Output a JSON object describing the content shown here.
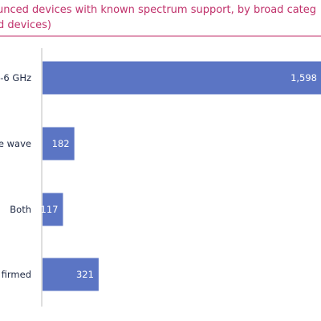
{
  "chart_data": {
    "type": "bar",
    "orientation": "horizontal",
    "title_lines": [
      "unced devices with known spectrum support, by broad categ",
      "d devices)"
    ],
    "categories": [
      "-6 GHz",
      "e wave",
      "Both",
      "firmed"
    ],
    "values": [
      1598,
      182,
      117,
      321
    ],
    "value_labels": [
      "1,598",
      "182",
      "117",
      "321"
    ],
    "xlim": [
      0,
      1598
    ],
    "grid": false,
    "legend": "none",
    "colors": {
      "bar": "#5b75c4",
      "title": "#c0316b",
      "title_rule": "#c0316b",
      "axis": "#bfbfbf",
      "label": "#1f2a44",
      "value_text": "#ffffff"
    }
  }
}
